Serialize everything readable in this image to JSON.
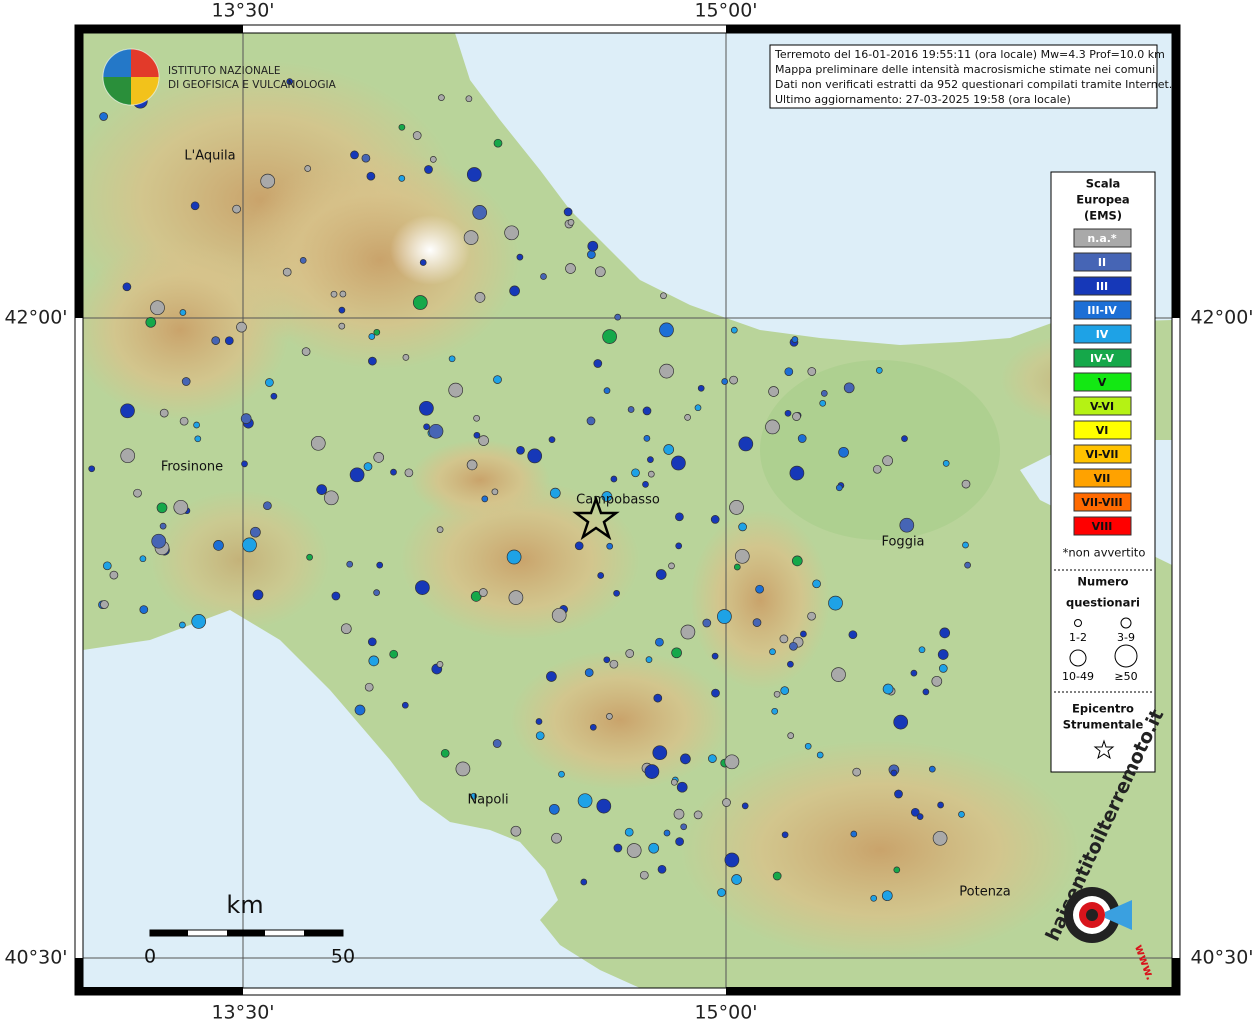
{
  "map": {
    "grid_labels": {
      "lon": [
        "13°30'",
        "15°00'"
      ],
      "lat": [
        "42°00'",
        "40°30'"
      ]
    },
    "info": [
      "Terremoto del 16-01-2016 19:55:11 (ora locale) Mw=4.3 Prof=10.0 km",
      "Mappa preliminare delle intensità macrosismiche stimate nei comuni",
      "Dati non verificati estratti da 952 questionari compilati tramite Internet.",
      "Ultimo aggiornamento: 27-03-2025 19:58 (ora locale)"
    ],
    "institute": [
      "ISTITUTO NAZIONALE",
      "DI GEOFISICA E VULCANOLOGIA"
    ],
    "cities": [
      "L'Aquila",
      "Frosinone",
      "Campobasso",
      "Foggia",
      "Napoli",
      "Potenza"
    ],
    "legend": {
      "title": [
        "Scala",
        "Europea",
        "(EMS)"
      ],
      "items": [
        {
          "label": "n.a.*",
          "color": "#a9a9a9"
        },
        {
          "label": "II",
          "color": "#4665b5"
        },
        {
          "label": "III",
          "color": "#1638b8"
        },
        {
          "label": "III-IV",
          "color": "#1c6fd6"
        },
        {
          "label": "IV",
          "color": "#1ea2e6"
        },
        {
          "label": "IV-V",
          "color": "#15a84a"
        },
        {
          "label": "V",
          "color": "#13e813"
        },
        {
          "label": "V-VI",
          "color": "#b5f214"
        },
        {
          "label": "VI",
          "color": "#ffff00"
        },
        {
          "label": "VI-VII",
          "color": "#ffc200"
        },
        {
          "label": "VII",
          "color": "#ffa200"
        },
        {
          "label": "VII-VIII",
          "color": "#ff6a00"
        },
        {
          "label": "VIII",
          "color": "#ff0000"
        }
      ],
      "note": "*non avvertito",
      "count_title": [
        "Numero",
        "questionari"
      ],
      "counts": [
        "1-2",
        "3-9",
        "10-49",
        "≥50"
      ],
      "epicenter": [
        "Epicentro",
        "Strumentale"
      ]
    },
    "scale": {
      "unit": "km",
      "labels": [
        "0",
        "50"
      ]
    },
    "site": {
      "name": "haisentitoilterremoto.it",
      "www": "www."
    }
  }
}
